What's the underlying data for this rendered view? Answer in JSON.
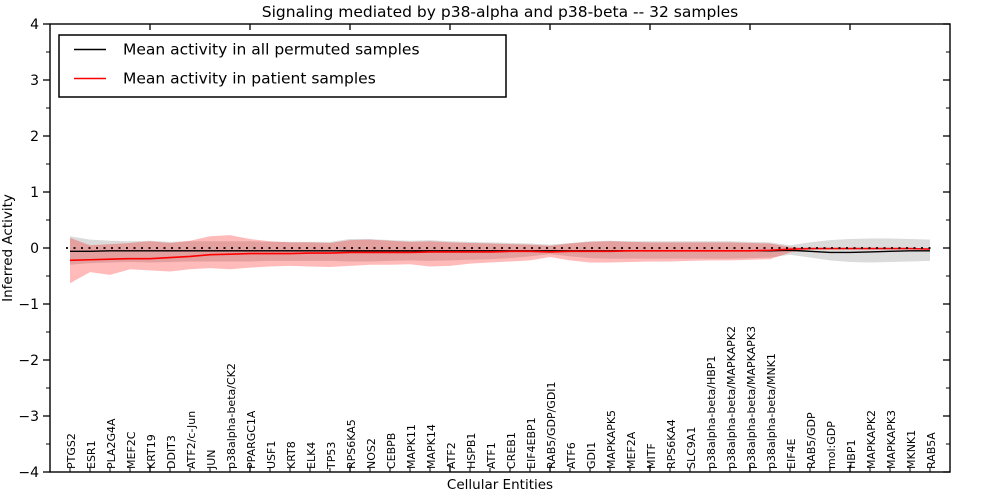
{
  "chart_data": {
    "type": "line",
    "title": "Signaling mediated by p38-alpha and p38-beta -- 32 samples",
    "xlabel": "Cellular Entities",
    "ylabel": "Inferred Activity",
    "ylim": [
      -4,
      4
    ],
    "yticks": [
      4,
      3,
      2,
      1,
      0,
      -1,
      -2,
      -3,
      -4
    ],
    "ytick_labels": [
      "4",
      "3",
      "2",
      "1",
      "0",
      "−1",
      "−2",
      "−3",
      "−4"
    ],
    "grid": false,
    "legend_position": "upper left",
    "zero_line": {
      "y": 0,
      "style": "dotted",
      "color": "#000000"
    },
    "sample_count": 32,
    "categories": [
      "PTGS2",
      "ESR1",
      "PLA2G4A",
      "MEF2C",
      "KRT19",
      "DDIT3",
      "ATF2/c-Jun",
      "JUN",
      "p38alpha-beta/CK2",
      "PPARGC1A",
      "USF1",
      "KRT8",
      "ELK4",
      "TP53",
      "RPS6KA5",
      "NOS2",
      "CEBPB",
      "MAPK11",
      "MAPK14",
      "ATF2",
      "HSPB1",
      "ATF1",
      "CREB1",
      "EIF4EBP1",
      "RAB5/GDP/GDI1",
      "ATF6",
      "GDI1",
      "MAPKAPK5",
      "MEF2A",
      "MITF",
      "RPS6KA4",
      "SLC9A1",
      "p38alpha-beta/HBP1",
      "p38alpha-beta/MAPKAPK2",
      "p38alpha-beta/MAPKAPK3",
      "p38alpha-beta/MNK1",
      "EIF4E",
      "RAB5/GDP",
      "mol:GDP",
      "HBP1",
      "MAPKAPK2",
      "MAPKAPK3",
      "MKNK1",
      "RAB5A"
    ],
    "series": [
      {
        "name": "Mean activity in all permuted samples",
        "color": "#000000",
        "band_color": "#999999",
        "band_opacity": 0.35,
        "values": [
          -0.06,
          -0.06,
          -0.05,
          -0.05,
          -0.05,
          -0.05,
          -0.05,
          -0.05,
          -0.05,
          -0.05,
          -0.05,
          -0.05,
          -0.05,
          -0.05,
          -0.05,
          -0.05,
          -0.05,
          -0.05,
          -0.05,
          -0.05,
          -0.05,
          -0.05,
          -0.05,
          -0.05,
          -0.05,
          -0.05,
          -0.05,
          -0.05,
          -0.05,
          -0.05,
          -0.05,
          -0.05,
          -0.05,
          -0.05,
          -0.05,
          -0.05,
          -0.04,
          -0.06,
          -0.08,
          -0.08,
          -0.07,
          -0.06,
          -0.05,
          -0.05
        ],
        "band_upper": [
          0.21,
          0.15,
          0.13,
          0.12,
          0.13,
          0.11,
          0.12,
          0.12,
          0.12,
          0.12,
          0.11,
          0.11,
          0.11,
          0.11,
          0.16,
          0.16,
          0.14,
          0.13,
          0.14,
          0.12,
          0.11,
          0.1,
          0.09,
          0.08,
          0.06,
          0.09,
          0.12,
          0.13,
          0.12,
          0.12,
          0.12,
          0.12,
          0.12,
          0.12,
          0.11,
          0.1,
          0.05,
          0.1,
          0.14,
          0.16,
          0.17,
          0.17,
          0.16,
          0.15
        ],
        "band_lower": [
          -0.3,
          -0.27,
          -0.26,
          -0.25,
          -0.26,
          -0.25,
          -0.24,
          -0.24,
          -0.24,
          -0.24,
          -0.23,
          -0.23,
          -0.23,
          -0.23,
          -0.24,
          -0.24,
          -0.23,
          -0.22,
          -0.23,
          -0.22,
          -0.21,
          -0.2,
          -0.18,
          -0.15,
          -0.11,
          -0.15,
          -0.18,
          -0.19,
          -0.19,
          -0.19,
          -0.19,
          -0.19,
          -0.19,
          -0.19,
          -0.18,
          -0.17,
          -0.12,
          -0.17,
          -0.22,
          -0.25,
          -0.26,
          -0.25,
          -0.24,
          -0.23
        ]
      },
      {
        "name": "Mean activity in patient samples",
        "color": "#ff0000",
        "band_color": "#ff0000",
        "band_opacity": 0.27,
        "values": [
          -0.22,
          -0.21,
          -0.2,
          -0.19,
          -0.19,
          -0.17,
          -0.15,
          -0.12,
          -0.11,
          -0.1,
          -0.1,
          -0.1,
          -0.09,
          -0.09,
          -0.08,
          -0.08,
          -0.08,
          -0.08,
          -0.07,
          -0.07,
          -0.07,
          -0.07,
          -0.06,
          -0.06,
          -0.07,
          -0.06,
          -0.06,
          -0.06,
          -0.05,
          -0.05,
          -0.05,
          -0.05,
          -0.05,
          -0.05,
          -0.05,
          -0.04,
          -0.02,
          -0.01,
          -0.01,
          -0.01,
          -0.01,
          -0.01,
          -0.01,
          -0.02
        ],
        "band_upper": [
          0.18,
          0.05,
          0.07,
          0.09,
          0.12,
          0.09,
          0.13,
          0.21,
          0.23,
          0.16,
          0.12,
          0.1,
          0.1,
          0.09,
          0.14,
          0.15,
          0.13,
          0.11,
          0.12,
          0.1,
          0.09,
          0.08,
          0.07,
          0.06,
          0.04,
          0.08,
          0.11,
          0.12,
          0.11,
          0.1,
          0.1,
          0.1,
          0.1,
          0.1,
          0.09,
          0.08,
          0.02,
          0.0,
          0.0,
          0.0,
          0.0,
          0.0,
          0.0,
          0.0
        ],
        "band_lower": [
          -0.63,
          -0.43,
          -0.48,
          -0.38,
          -0.4,
          -0.42,
          -0.38,
          -0.36,
          -0.38,
          -0.35,
          -0.33,
          -0.32,
          -0.33,
          -0.34,
          -0.32,
          -0.3,
          -0.3,
          -0.29,
          -0.33,
          -0.32,
          -0.28,
          -0.26,
          -0.24,
          -0.22,
          -0.16,
          -0.22,
          -0.26,
          -0.26,
          -0.25,
          -0.24,
          -0.24,
          -0.23,
          -0.22,
          -0.22,
          -0.21,
          -0.2,
          -0.08,
          -0.03,
          -0.02,
          -0.02,
          -0.02,
          -0.02,
          -0.02,
          -0.03
        ]
      }
    ]
  }
}
